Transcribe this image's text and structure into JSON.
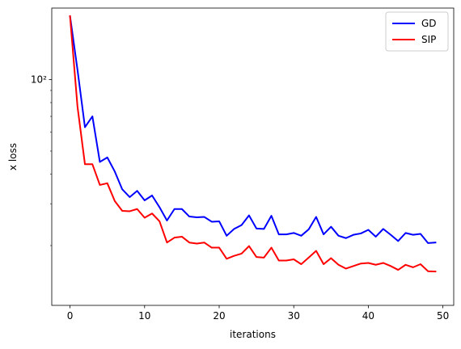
{
  "chart_data": {
    "type": "line",
    "title": "",
    "xlabel": "iterations",
    "ylabel": "x loss",
    "yscale": "log",
    "xlim": [
      -2.45,
      51.45
    ],
    "ylim": [
      11.2,
      200
    ],
    "x_ticks": [
      0,
      10,
      20,
      30,
      40,
      50
    ],
    "y_major_ticks": [
      100
    ],
    "y_major_tick_labels": [
      "10²"
    ],
    "y_minor_ticks": [
      20,
      30,
      40,
      50,
      60,
      70,
      80,
      90
    ],
    "grid": false,
    "legend_position": "top-right",
    "x": [
      0,
      1,
      2,
      3,
      4,
      5,
      6,
      7,
      8,
      9,
      10,
      11,
      12,
      13,
      14,
      15,
      16,
      17,
      18,
      19,
      20,
      21,
      22,
      23,
      24,
      25,
      26,
      27,
      28,
      29,
      30,
      31,
      32,
      33,
      34,
      35,
      36,
      37,
      38,
      39,
      40,
      41,
      42,
      43,
      44,
      45,
      46,
      47,
      48,
      49
    ],
    "series": [
      {
        "name": "GD",
        "color": "#0000ff",
        "values": [
          185,
          110,
          63,
          70,
          45,
          47,
          41,
          34.5,
          32,
          34,
          31,
          32.5,
          29,
          25.5,
          28.5,
          28.5,
          26.5,
          26.3,
          26.4,
          25.2,
          25.3,
          22,
          23.5,
          24.4,
          26.8,
          23.6,
          23.5,
          26.7,
          22.3,
          22.3,
          22.6,
          22,
          23.4,
          26.4,
          22.3,
          24,
          22,
          21.5,
          22.2,
          22.5,
          23.3,
          21.8,
          23.5,
          22.2,
          20.9,
          22.6,
          22.2,
          22.4,
          20.5,
          20.6
        ]
      },
      {
        "name": "SIP",
        "color": "#ff0000",
        "values": [
          185,
          77,
          44,
          44,
          36,
          36.6,
          30.8,
          28,
          27.9,
          28.5,
          26.2,
          27.3,
          25.3,
          20.6,
          21.6,
          21.8,
          20.6,
          20.4,
          20.6,
          19.6,
          19.6,
          17.6,
          18.1,
          18.5,
          19.9,
          17.9,
          17.8,
          19.6,
          17.3,
          17.3,
          17.5,
          16.7,
          17.8,
          19.0,
          16.7,
          17.7,
          16.6,
          16.0,
          16.4,
          16.8,
          16.9,
          16.6,
          16.9,
          16.4,
          15.8,
          16.6,
          16.2,
          16.7,
          15.6,
          15.55
        ]
      }
    ]
  }
}
